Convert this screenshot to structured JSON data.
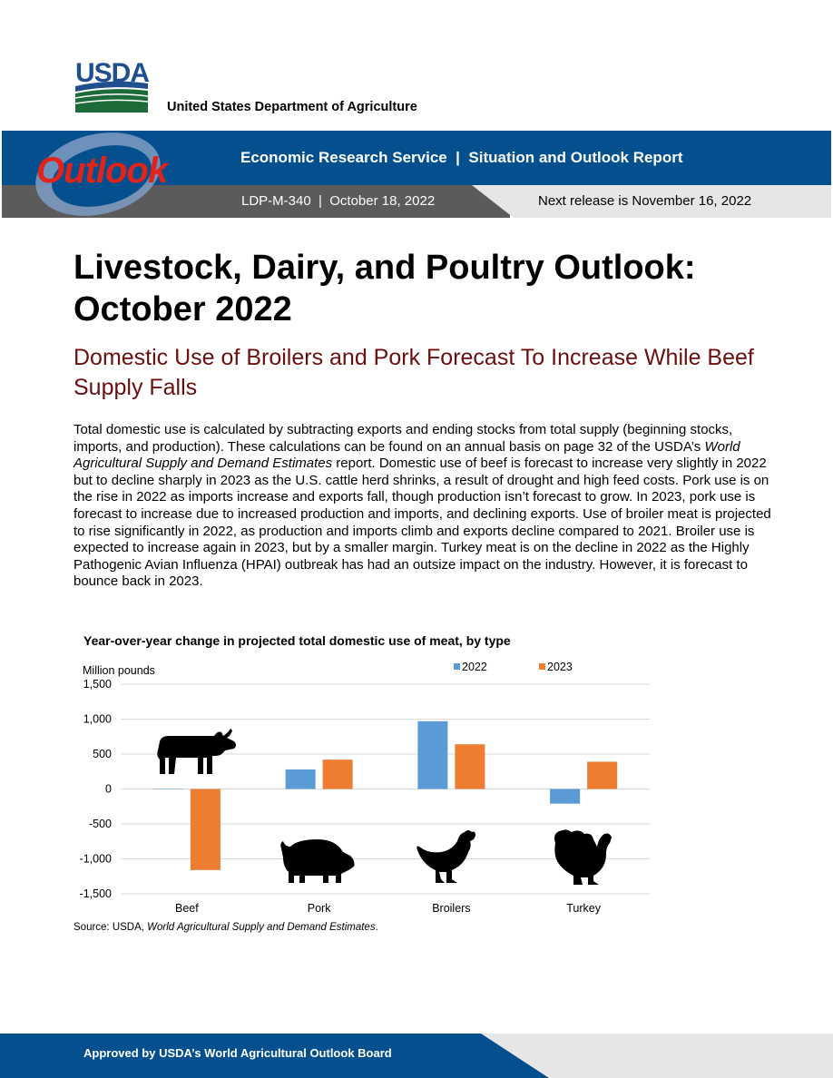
{
  "header": {
    "logo_text": "USDA",
    "department": "United States Department of Agriculture",
    "outlook_logo_text": "Outlook",
    "banner_title": "Economic Research Service  |  Situation and Outlook Report",
    "report_meta": "LDP-M-340  |  October 18, 2022",
    "next_release": "Next release is November 16, 2022"
  },
  "document": {
    "title": "Livestock, Dairy, and Poultry Outlook: October 2022",
    "subtitle": "Domestic Use of Broilers and Pork Forecast To Increase While Beef Supply Falls",
    "body": {
      "part1": "Total domestic use is calculated by subtracting exports and ending stocks from total supply (beginning stocks, imports, and production). These calculations can be found on an annual basis on page 32 of the USDA’s ",
      "part2": "World Agricultural Supply and Demand Estimates",
      "part3": " report. Domestic use of beef is forecast to increase very slightly in 2022 but to decline sharply in 2023 as the U.S. cattle herd shrinks, a result of drought and high feed costs. Pork use is on the rise in 2022 as imports increase and exports fall, though production isn’t forecast to grow. In 2023, pork use is forecast to increase due to increased production and imports, and declining exports. Use of broiler meat is projected to rise significantly in 2022, as production and imports climb and exports decline compared to 2021. Broiler use is expected to increase again in 2023, but by a smaller margin. Turkey meat is on the decline in 2022 as the Highly Pathogenic Avian Influenza (HPAI) outbreak has had an outsize impact on the industry. However, it is forecast to bounce back in 2023."
    }
  },
  "chart_data": {
    "type": "bar",
    "title": "Year-over-year change in projected total domestic use of meat, by type",
    "ylabel": "Million pounds",
    "xlabel": "",
    "categories": [
      "Beef",
      "Pork",
      "Broilers",
      "Turkey"
    ],
    "series": [
      {
        "name": "2022",
        "color": "#5b9bd5",
        "values": [
          5,
          280,
          970,
          -210
        ]
      },
      {
        "name": "2023",
        "color": "#ed7d31",
        "values": [
          -1160,
          420,
          640,
          390
        ]
      }
    ],
    "ylim": [
      -1500,
      1500
    ],
    "yticks": [
      1500,
      1000,
      500,
      0,
      -500,
      -1000,
      -1500
    ],
    "ytick_labels": [
      "1,500",
      "1,000",
      "500",
      "0",
      "-500",
      "-1,000",
      "-1,500"
    ],
    "grid": true,
    "legend_position": "top",
    "icons": [
      "cow-icon",
      "pig-icon",
      "chicken-icon",
      "turkey-icon"
    ]
  },
  "source": {
    "prefix": "Source: USDA, ",
    "title": "World Agricultural Supply and Demand Estimates",
    "suffix": "."
  },
  "footer": {
    "text": "Approved by USDA’s World Agricultural Outlook Board"
  },
  "colors": {
    "brand_blue": "#04508f",
    "subtitle_red": "#6b0f0f",
    "outlook_red": "#e2231a",
    "usda_green": "#1e6b3a"
  }
}
